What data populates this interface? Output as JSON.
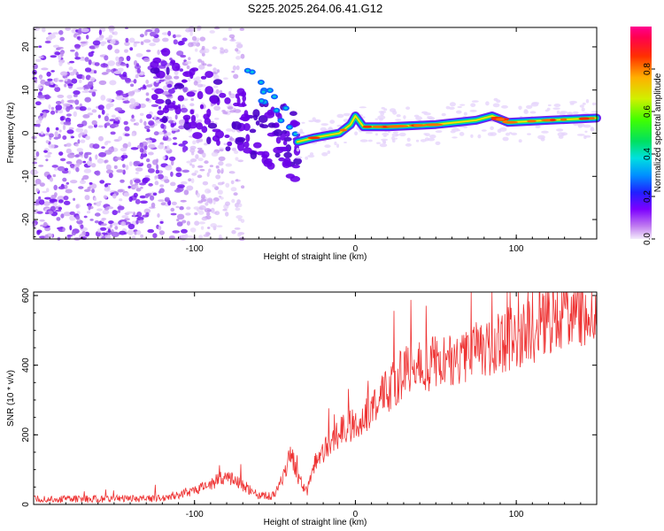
{
  "title": "S225.2025.264.06.41.G12",
  "chart_data": [
    {
      "type": "heatmap",
      "name": "spectrogram",
      "xlabel": "Height of straight line (km)",
      "ylabel": "Frequency (Hz)",
      "xlim": [
        -200,
        150
      ],
      "ylim": [
        -24.5,
        24.5
      ],
      "xticks": [
        -100,
        0,
        100
      ],
      "yticks": [
        -20,
        -10,
        0,
        10,
        20
      ],
      "colorbar": {
        "label": "Normalized spectral amplitude",
        "ticks": [
          "0.0",
          "0.2",
          "0.4",
          "0.6",
          "0.8"
        ],
        "range": [
          0,
          1
        ]
      },
      "ridge": [
        {
          "x": -36,
          "y": -2
        },
        {
          "x": -25,
          "y": -1
        },
        {
          "x": -10,
          "y": 0
        },
        {
          "x": -3,
          "y": 2
        },
        {
          "x": 0,
          "y": 4
        },
        {
          "x": 5,
          "y": 1.5
        },
        {
          "x": 20,
          "y": 1.5
        },
        {
          "x": 50,
          "y": 2
        },
        {
          "x": 75,
          "y": 3
        },
        {
          "x": 85,
          "y": 4
        },
        {
          "x": 95,
          "y": 2.5
        },
        {
          "x": 120,
          "y": 3
        },
        {
          "x": 150,
          "y": 3.5
        }
      ]
    },
    {
      "type": "line",
      "name": "snr",
      "xlabel": "Height of straight line (km)",
      "ylabel": "SNR (10 * v/v)",
      "xlim": [
        -200,
        150
      ],
      "ylim": [
        0,
        610
      ],
      "xticks": [
        -100,
        0,
        100
      ],
      "yticks": [
        0,
        200,
        400,
        600
      ],
      "color": "#ee3333",
      "x": [
        -200,
        -160,
        -120,
        -100,
        -90,
        -80,
        -70,
        -60,
        -50,
        -45,
        -40,
        -35,
        -30,
        -25,
        -20,
        -10,
        0,
        10,
        20,
        30,
        40,
        50,
        60,
        70,
        80,
        90,
        100,
        110,
        120,
        130,
        140,
        150
      ],
      "y": [
        15,
        15,
        18,
        40,
        60,
        80,
        55,
        25,
        25,
        80,
        150,
        70,
        40,
        120,
        150,
        210,
        230,
        280,
        330,
        380,
        395,
        410,
        420,
        440,
        450,
        470,
        480,
        500,
        530,
        550,
        565,
        540
      ]
    }
  ]
}
